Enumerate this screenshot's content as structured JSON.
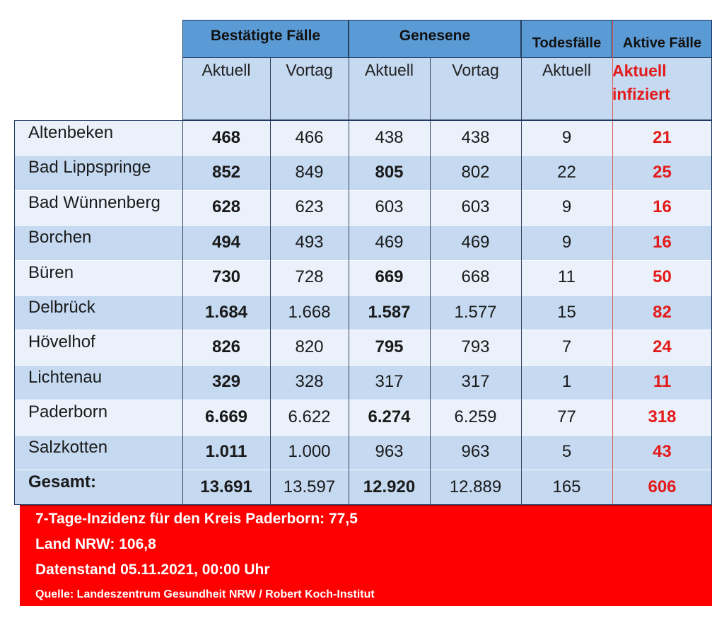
{
  "header": {
    "groups": [
      "Bestätigte Fälle",
      "Genesene",
      "Todesfälle",
      "Aktive Fälle"
    ],
    "subheaders": [
      "Aktuell",
      "Vortag",
      "Aktuell",
      "Vortag",
      "Aktuell"
    ],
    "active_sub": [
      "Aktuell",
      "infiziert"
    ]
  },
  "rows": [
    {
      "name": "Altenbeken",
      "values": [
        "468",
        "466",
        "438",
        "438",
        "9",
        "21"
      ],
      "bold": [
        true,
        false,
        false,
        false,
        false,
        true
      ]
    },
    {
      "name": "Bad Lippspringe",
      "values": [
        "852",
        "849",
        "805",
        "802",
        "22",
        "25"
      ],
      "bold": [
        true,
        false,
        true,
        false,
        false,
        true
      ]
    },
    {
      "name": "Bad Wünnenberg",
      "values": [
        "628",
        "623",
        "603",
        "603",
        "9",
        "16"
      ],
      "bold": [
        true,
        false,
        false,
        false,
        false,
        true
      ]
    },
    {
      "name": "Borchen",
      "values": [
        "494",
        "493",
        "469",
        "469",
        "9",
        "16"
      ],
      "bold": [
        true,
        false,
        false,
        false,
        false,
        true
      ]
    },
    {
      "name": "Büren",
      "values": [
        "730",
        "728",
        "669",
        "668",
        "11",
        "50"
      ],
      "bold": [
        true,
        false,
        true,
        false,
        false,
        true
      ]
    },
    {
      "name": "Delbrück",
      "values": [
        "1.684",
        "1.668",
        "1.587",
        "1.577",
        "15",
        "82"
      ],
      "bold": [
        true,
        false,
        true,
        false,
        false,
        true
      ]
    },
    {
      "name": "Hövelhof",
      "values": [
        "826",
        "820",
        "795",
        "793",
        "7",
        "24"
      ],
      "bold": [
        true,
        false,
        true,
        false,
        false,
        true
      ]
    },
    {
      "name": "Lichtenau",
      "values": [
        "329",
        "328",
        "317",
        "317",
        "1",
        "11"
      ],
      "bold": [
        true,
        false,
        false,
        false,
        false,
        true
      ]
    },
    {
      "name": "Paderborn",
      "values": [
        "6.669",
        "6.622",
        "6.274",
        "6.259",
        "77",
        "318"
      ],
      "bold": [
        true,
        false,
        true,
        false,
        false,
        true
      ]
    },
    {
      "name": "Salzkotten",
      "values": [
        "1.011",
        "1.000",
        "963",
        "963",
        "5",
        "43"
      ],
      "bold": [
        true,
        false,
        false,
        false,
        false,
        true
      ]
    }
  ],
  "total": {
    "name": "Gesamt:",
    "values": [
      "13.691",
      "13.597",
      "12.920",
      "12.889",
      "165",
      "606"
    ],
    "bold": [
      true,
      false,
      true,
      false,
      false,
      true
    ]
  },
  "footer": {
    "incidence": "7-Tage-Inzidenz für den Kreis Paderborn: 77,5",
    "nrw": "Land NRW: 106,8",
    "date": "Datenstand 05.11.2021, 00:00 Uhr",
    "source": "Quelle: Landeszentrum Gesundheit NRW / Robert Koch-Institut"
  },
  "colors": {
    "header_blue": "#5b9bd5",
    "row_light": "#eaf1fb",
    "row_blue": "#c5d9f1",
    "active_red": "#e31b1b",
    "footer_red": "#ff0000"
  }
}
